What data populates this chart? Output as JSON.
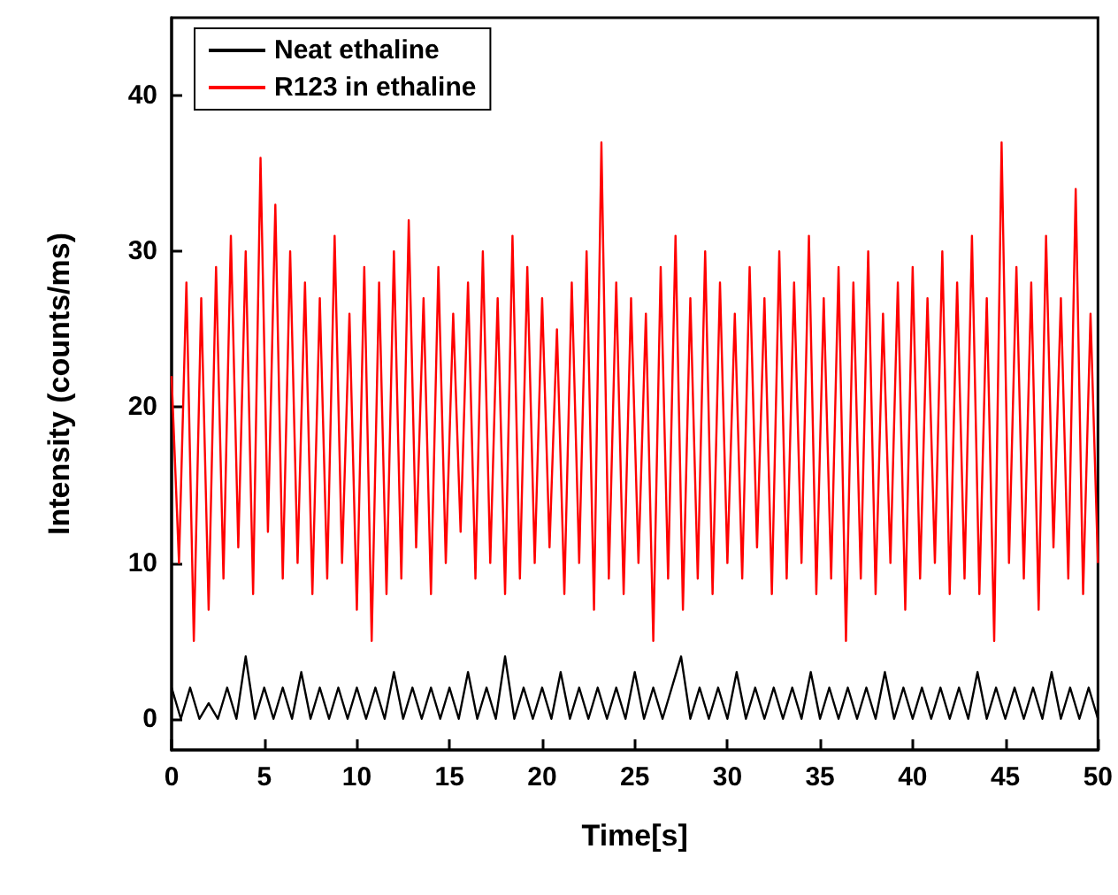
{
  "chart_data": {
    "type": "line",
    "xlabel": "Time[s]",
    "ylabel": "Intensity (counts/ms)",
    "xlim": [
      0,
      50
    ],
    "ylim": [
      -2,
      45
    ],
    "xticks": [
      0,
      5,
      10,
      15,
      20,
      25,
      30,
      35,
      40,
      45,
      50
    ],
    "yticks": [
      0,
      10,
      20,
      30,
      40
    ],
    "grid": false,
    "legend": "top left",
    "marker": "none",
    "line_style": "solid",
    "series": [
      {
        "name": "Neat ethaline",
        "color": "#000000",
        "x": [
          0,
          0.5,
          1,
          1.5,
          2,
          2.5,
          3,
          3.5,
          4,
          4.5,
          5,
          5.5,
          6,
          6.5,
          7,
          7.5,
          8,
          8.5,
          9,
          9.5,
          10,
          10.5,
          11,
          11.5,
          12,
          12.5,
          13,
          13.5,
          14,
          14.5,
          15,
          15.5,
          16,
          16.5,
          17,
          17.5,
          18,
          18.5,
          19,
          19.5,
          20,
          20.5,
          21,
          21.5,
          22,
          22.5,
          23,
          23.5,
          24,
          24.5,
          25,
          25.5,
          26,
          26.5,
          27,
          27.5,
          28,
          28.5,
          29,
          29.5,
          30,
          30.5,
          31,
          31.5,
          32,
          32.5,
          33,
          33.5,
          34,
          34.5,
          35,
          35.5,
          36,
          36.5,
          37,
          37.5,
          38,
          38.5,
          39,
          39.5,
          40,
          40.5,
          41,
          41.5,
          42,
          42.5,
          43,
          43.5,
          44,
          44.5,
          45,
          45.5,
          46,
          46.5,
          47,
          47.5,
          48,
          48.5,
          49,
          49.5,
          50
        ],
        "values": [
          2,
          0,
          2,
          0,
          1,
          0,
          2,
          0,
          4,
          0,
          2,
          0,
          2,
          0,
          3,
          0,
          2,
          0,
          2,
          0,
          2,
          0,
          2,
          0,
          3,
          0,
          2,
          0,
          2,
          0,
          2,
          0,
          3,
          0,
          2,
          0,
          4,
          0,
          2,
          0,
          2,
          0,
          3,
          0,
          2,
          0,
          2,
          0,
          2,
          0,
          3,
          0,
          2,
          0,
          2,
          4,
          0,
          2,
          0,
          2,
          0,
          3,
          0,
          2,
          0,
          2,
          0,
          2,
          0,
          3,
          0,
          2,
          0,
          2,
          0,
          2,
          0,
          3,
          0,
          2,
          0,
          2,
          0,
          2,
          0,
          2,
          0,
          3,
          0,
          2,
          0,
          2,
          0,
          2,
          0,
          3,
          0,
          2,
          0,
          2,
          0
        ]
      },
      {
        "name": "R123 in ethaline",
        "color": "#ff0000",
        "x": [
          0,
          0.4,
          0.8,
          1.2,
          1.6,
          2,
          2.4,
          2.8,
          3.2,
          3.6,
          4,
          4.4,
          4.8,
          5.2,
          5.6,
          6,
          6.4,
          6.8,
          7.2,
          7.6,
          8,
          8.4,
          8.8,
          9.2,
          9.6,
          10,
          10.4,
          10.8,
          11.2,
          11.6,
          12,
          12.4,
          12.8,
          13.2,
          13.6,
          14,
          14.4,
          14.8,
          15.2,
          15.6,
          16,
          16.4,
          16.8,
          17.2,
          17.6,
          18,
          18.4,
          18.8,
          19.2,
          19.6,
          20,
          20.4,
          20.8,
          21.2,
          21.6,
          22,
          22.4,
          22.8,
          23.2,
          23.6,
          24,
          24.4,
          24.8,
          25.2,
          25.6,
          26,
          26.4,
          26.8,
          27.2,
          27.6,
          28,
          28.4,
          28.8,
          29.2,
          29.6,
          30,
          30.4,
          30.8,
          31.2,
          31.6,
          32,
          32.4,
          32.8,
          33.2,
          33.6,
          34,
          34.4,
          34.8,
          35.2,
          35.6,
          36,
          36.4,
          36.8,
          37.2,
          37.6,
          38,
          38.4,
          38.8,
          39.2,
          39.6,
          40,
          40.4,
          40.8,
          41.2,
          41.6,
          42,
          42.4,
          42.8,
          43.2,
          43.6,
          44,
          44.4,
          44.8,
          45.2,
          45.6,
          46,
          46.4,
          46.8,
          47.2,
          47.6,
          48,
          48.4,
          48.8,
          49.2,
          49.6,
          50
        ],
        "values": [
          22,
          10,
          28,
          5,
          27,
          7,
          29,
          9,
          31,
          11,
          30,
          8,
          36,
          12,
          33,
          9,
          30,
          10,
          28,
          8,
          27,
          9,
          31,
          10,
          26,
          7,
          29,
          5,
          28,
          8,
          30,
          9,
          32,
          11,
          27,
          8,
          29,
          10,
          26,
          12,
          28,
          9,
          30,
          10,
          27,
          8,
          31,
          9,
          29,
          10,
          27,
          11,
          25,
          8,
          28,
          10,
          30,
          7,
          37,
          9,
          28,
          8,
          27,
          10,
          26,
          5,
          29,
          9,
          31,
          7,
          27,
          9,
          30,
          8,
          28,
          10,
          26,
          9,
          29,
          11,
          27,
          8,
          30,
          9,
          28,
          10,
          31,
          8,
          27,
          9,
          29,
          5,
          28,
          9,
          30,
          8,
          26,
          10,
          28,
          7,
          29,
          9,
          27,
          10,
          30,
          8,
          28,
          9,
          31,
          8,
          27,
          5,
          37,
          10,
          29,
          9,
          28,
          7,
          31,
          11,
          27,
          9,
          34,
          8,
          26,
          10
        ]
      }
    ]
  }
}
